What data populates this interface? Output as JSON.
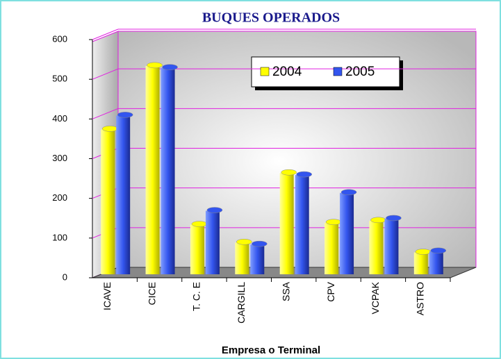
{
  "chart_data": {
    "type": "bar",
    "title": "BUQUES OPERADOS",
    "x_label": "Empresa o Terminal",
    "categories": [
      "ICAVE",
      "CICE",
      "T. C. E",
      "CARGILL",
      "SSA",
      "CPV",
      "VCPAK",
      "ASTRO"
    ],
    "series": [
      {
        "name": "2004",
        "color": "#ffff00",
        "values": [
          365,
          525,
          125,
          80,
          255,
          130,
          135,
          55
        ]
      },
      {
        "name": "2005",
        "color": "#3355ee",
        "values": [
          400,
          520,
          160,
          75,
          250,
          205,
          140,
          58
        ]
      }
    ],
    "ylim": [
      0,
      600
    ],
    "yticks": [
      0,
      100,
      200,
      300,
      400,
      500,
      600
    ],
    "grid": true,
    "legend": "top-right"
  }
}
